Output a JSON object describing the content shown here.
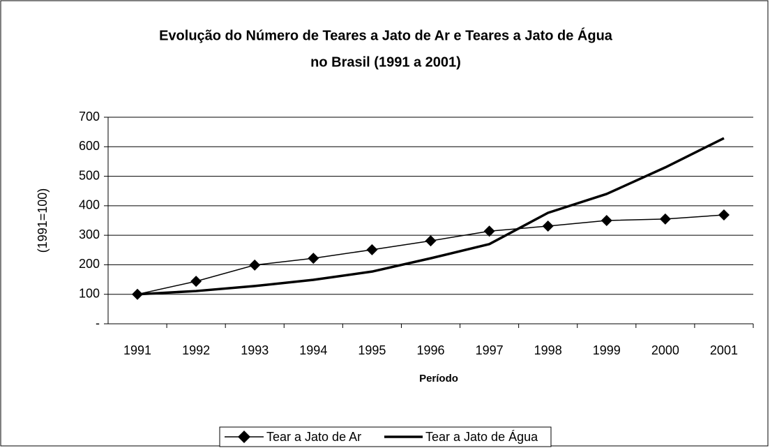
{
  "chart_data": {
    "type": "line",
    "title": [
      "Evolução do Número de Teares a Jato de Ar e Teares a Jato de Água",
      "no Brasil  (1991 a 2001)"
    ],
    "x_label": "Período",
    "y_label": "(1991=100)",
    "categories": [
      "1991",
      "1992",
      "1993",
      "1994",
      "1995",
      "1996",
      "1997",
      "1998",
      "1999",
      "2000",
      "2001"
    ],
    "series": [
      {
        "name": "Tear a Jato de Ar",
        "color": "#000000",
        "marker": "diamond",
        "values": [
          100,
          144,
          199,
          222,
          251,
          281,
          314,
          331,
          350,
          355,
          369
        ]
      },
      {
        "name": "Tear a Jato de Água",
        "color": "#000000",
        "values": [
          100,
          111,
          128,
          149,
          177,
          222,
          270,
          376,
          440,
          530,
          629
        ]
      }
    ],
    "ylim": [
      0,
      700
    ],
    "yticks": [
      {
        "value": 0,
        "label": "-"
      },
      100,
      200,
      300,
      400,
      500,
      600,
      700
    ],
    "grid": true,
    "legend": "bottom"
  }
}
